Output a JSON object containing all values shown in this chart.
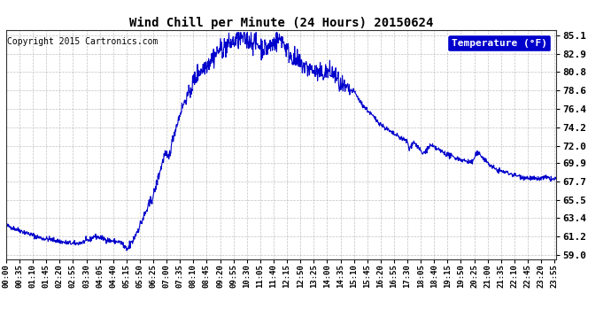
{
  "title": "Wind Chill per Minute (24 Hours) 20150624",
  "copyright_text": "Copyright 2015 Cartronics.com",
  "ylabel": "Temperature (°F)",
  "line_color": "#0000CC",
  "bg_color": "#ffffff",
  "plot_bg_color": "#ffffff",
  "grid_color": "#999999",
  "legend_bg": "#0000CC",
  "legend_fg": "#ffffff",
  "yticks": [
    59.0,
    61.2,
    63.4,
    65.5,
    67.7,
    69.9,
    72.0,
    74.2,
    76.4,
    78.6,
    80.8,
    82.9,
    85.1
  ],
  "ylim": [
    58.5,
    85.8
  ],
  "total_minutes": 1440,
  "xtick_labels": [
    "00:00",
    "00:35",
    "01:10",
    "01:45",
    "02:20",
    "02:55",
    "03:30",
    "04:05",
    "04:40",
    "05:15",
    "05:50",
    "06:25",
    "07:00",
    "07:35",
    "08:10",
    "08:45",
    "09:20",
    "09:55",
    "10:30",
    "11:05",
    "11:40",
    "12:15",
    "12:50",
    "13:25",
    "14:00",
    "14:35",
    "15:10",
    "15:45",
    "16:20",
    "16:55",
    "17:30",
    "18:05",
    "18:40",
    "19:15",
    "19:50",
    "20:25",
    "21:00",
    "21:35",
    "22:10",
    "22:45",
    "23:20",
    "23:55"
  ]
}
